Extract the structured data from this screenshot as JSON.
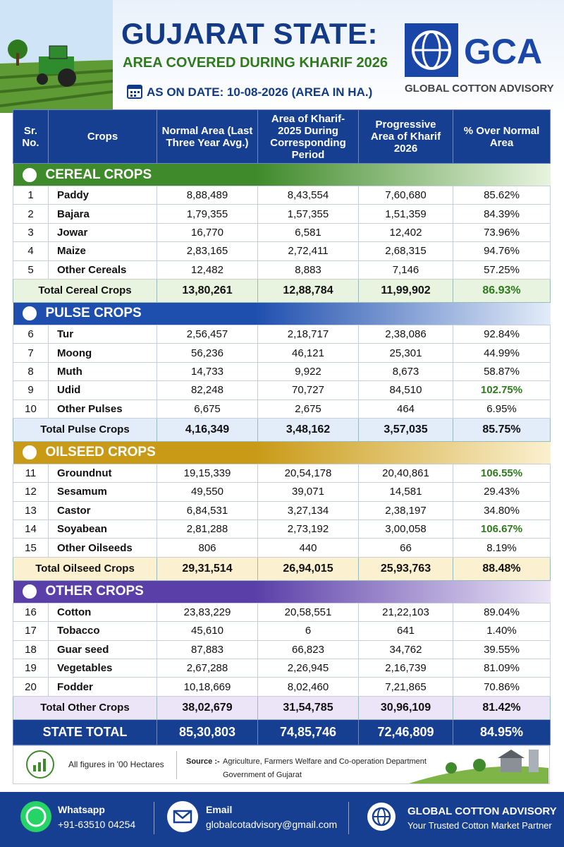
{
  "header": {
    "title": "GUJARAT STATE:",
    "subtitle": "AREA COVERED DURING KHARIF 2026",
    "date": "AS ON DATE: 10-08-2026 (AREA IN HA.)",
    "logo": "GCA",
    "logo_caption": "GLOBAL COTTON ADVISORY"
  },
  "table": {
    "columns": [
      "Sr. No.",
      "Crops",
      "Normal Area (Last Three Year Avg.)",
      "Area of Kharif-2025 During Corresponding Period",
      "Progressive Area of Kharif 2026",
      "% Over Normal Area"
    ],
    "sections": [
      {
        "title": "CEREAL CROPS",
        "color": "#3f8a2a",
        "tint": "#e8f4df",
        "highlight": [],
        "rows": [
          [
            "1",
            "Paddy",
            "8,88,489",
            "8,43,554",
            "7,60,680",
            "85.62%"
          ],
          [
            "2",
            "Bajara",
            "1,79,355",
            "1,57,355",
            "1,51,359",
            "84.39%"
          ],
          [
            "3",
            "Jowar",
            "16,770",
            "6,581",
            "12,402",
            "73.96%"
          ],
          [
            "4",
            "Maize",
            "2,83,165",
            "2,72,411",
            "2,68,315",
            "94.76%"
          ],
          [
            "5",
            "Other Cereals",
            "12,482",
            "8,883",
            "7,146",
            "57.25%"
          ]
        ],
        "total": [
          "Total Cereal Crops",
          "13,80,261",
          "12,88,784",
          "11,99,902",
          "86.93%"
        ]
      },
      {
        "title": "PULSE CROPS",
        "color": "#1f4fae",
        "tint": "#e3ecf9",
        "highlight": [
          3
        ],
        "rows": [
          [
            "6",
            "Tur",
            "2,56,457",
            "2,18,717",
            "2,38,086",
            "92.84%"
          ],
          [
            "7",
            "Moong",
            "56,236",
            "46,121",
            "25,301",
            "44.99%"
          ],
          [
            "8",
            "Muth",
            "14,733",
            "9,922",
            "8,673",
            "58.87%"
          ],
          [
            "9",
            "Udid",
            "82,248",
            "70,727",
            "84,510",
            "102.75%"
          ],
          [
            "10",
            "Other Pulses",
            "6,675",
            "2,675",
            "464",
            "6.95%"
          ]
        ],
        "total": [
          "Total Pulse Crops",
          "4,16,349",
          "3,48,162",
          "3,57,035",
          "85.75%"
        ]
      },
      {
        "title": "OILSEED CROPS",
        "color": "#c99a16",
        "tint": "#fbf0cf",
        "highlight": [
          0,
          3
        ],
        "rows": [
          [
            "11",
            "Groundnut",
            "19,15,339",
            "20,54,178",
            "20,40,861",
            "106.55%"
          ],
          [
            "12",
            "Sesamum",
            "49,550",
            "39,071",
            "14,581",
            "29.43%"
          ],
          [
            "13",
            "Castor",
            "6,84,531",
            "3,27,134",
            "2,38,197",
            "34.80%"
          ],
          [
            "14",
            "Soyabean",
            "2,81,288",
            "2,73,192",
            "3,00,058",
            "106.67%"
          ],
          [
            "15",
            "Other Oilseeds",
            "806",
            "440",
            "66",
            "8.19%"
          ]
        ],
        "total": [
          "Total Oilseed Crops",
          "29,31,514",
          "26,94,015",
          "25,93,763",
          "88.48%"
        ]
      },
      {
        "title": "OTHER CROPS",
        "color": "#5b3fa8",
        "tint": "#ebe5f7",
        "highlight": [],
        "rows": [
          [
            "16",
            "Cotton",
            "23,83,229",
            "20,58,551",
            "21,22,103",
            "89.04%"
          ],
          [
            "17",
            "Tobacco",
            "45,610",
            "6",
            "641",
            "1.40%"
          ],
          [
            "18",
            "Guar seed",
            "87,883",
            "66,823",
            "34,762",
            "39.55%"
          ],
          [
            "19",
            "Vegetables",
            "2,67,288",
            "2,26,945",
            "2,16,739",
            "81.09%"
          ],
          [
            "20",
            "Fodder",
            "10,18,669",
            "8,02,460",
            "7,21,865",
            "70.86%"
          ]
        ],
        "total": [
          "Total Other Crops",
          "38,02,679",
          "31,54,785",
          "30,96,109",
          "81.42%"
        ]
      }
    ],
    "state_total": [
      "STATE TOTAL",
      "85,30,803",
      "74,85,746",
      "72,46,809",
      "84.95%"
    ]
  },
  "note": {
    "units": "All figures in '00 Hectares",
    "source_label": "Source :-",
    "source_line1": "Agriculture, Farmers Welfare and Co-operation Department",
    "source_line2": "Government of Gujarat"
  },
  "footer": {
    "whatsapp_label": "Whatsapp",
    "whatsapp": "+91-63510 04254",
    "email_label": "Email",
    "email": "globalcotadvisory@gmail.com",
    "brand": "GLOBAL COTTON ADVISORY",
    "tagline": "Your Trusted Cotton Market Partner"
  }
}
